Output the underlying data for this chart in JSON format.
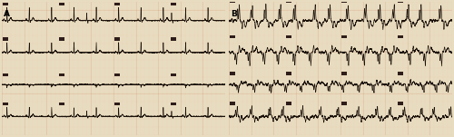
{
  "fig_width": 5.0,
  "fig_height": 1.51,
  "dpi": 100,
  "paper_color_A": "#f4e8cc",
  "paper_color_B": "#f5ead0",
  "grid_minor_color": "#e8b8a0",
  "grid_major_color": "#d09878",
  "label_A": "A",
  "label_B": "B",
  "outer_bg": "#e8dcc0",
  "divider_color": "#c8b898",
  "trace_color": "#1a1008",
  "marker_color": "#1a0808",
  "border_color": "#b8a888"
}
